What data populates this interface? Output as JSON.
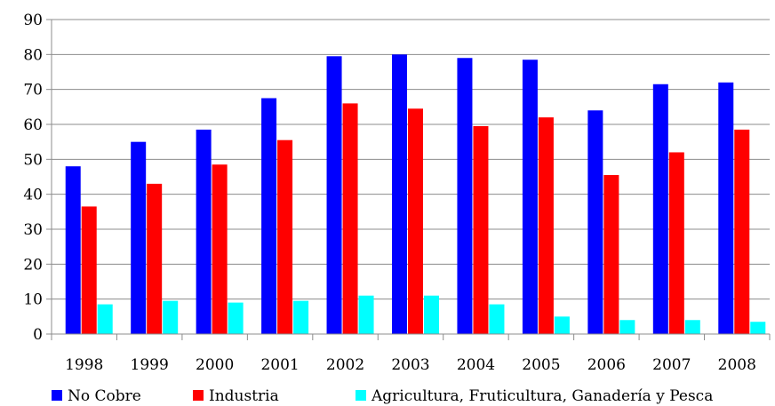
{
  "chart_data": {
    "type": "bar",
    "categories": [
      "1998",
      "1999",
      "2000",
      "2001",
      "2002",
      "2003",
      "2004",
      "2005",
      "2006",
      "2007",
      "2008"
    ],
    "series": [
      {
        "name": "No Cobre",
        "color": "#0000ff",
        "values": [
          48,
          55,
          58.5,
          67.5,
          79.5,
          80,
          79,
          78.5,
          64,
          71.5,
          72
        ]
      },
      {
        "name": "Industria",
        "color": "#ff0000",
        "values": [
          36.5,
          43,
          48.5,
          55.5,
          66,
          64.5,
          59.5,
          62,
          45.5,
          52,
          58.5
        ]
      },
      {
        "name": "Agricultura, Fruticultura, Ganadería y Pesca",
        "color": "#00ffff",
        "values": [
          8.5,
          9.5,
          9,
          9.5,
          11,
          11,
          8.5,
          5,
          4,
          4,
          3.5
        ]
      }
    ],
    "ylim": [
      0,
      90
    ],
    "yticks": [
      0,
      10,
      20,
      30,
      40,
      50,
      60,
      70,
      80,
      90
    ],
    "title": "",
    "xlabel": "",
    "ylabel": "",
    "grid": "horizontal",
    "legend_position": "bottom"
  }
}
